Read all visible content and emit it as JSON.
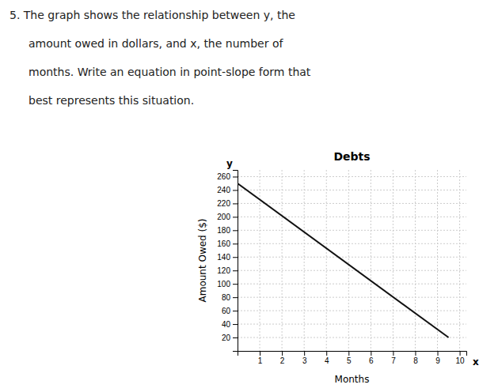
{
  "chart_data": {
    "type": "line",
    "title": "Debts",
    "xlabel": "Months",
    "ylabel": "Amount Owed ($)",
    "annotations": [
      "5.  The graph shows the relationship between y, the",
      "amount owed in dollars, and x, the number of",
      "months. Write an equation in point-slope form that",
      "best represents this situation.",
      "y",
      "x"
    ],
    "x": [
      0,
      9.5
    ],
    "values": [
      250,
      20
    ],
    "color": "#111111",
    "xlim": [
      0,
      10.3
    ],
    "ylim": [
      0,
      270
    ],
    "xticks": [
      1,
      2,
      3,
      4,
      5,
      6,
      7,
      8,
      9,
      10
    ],
    "yticks": [
      20,
      40,
      60,
      80,
      100,
      120,
      140,
      160,
      180,
      200,
      220,
      240,
      260
    ],
    "grid": true
  }
}
